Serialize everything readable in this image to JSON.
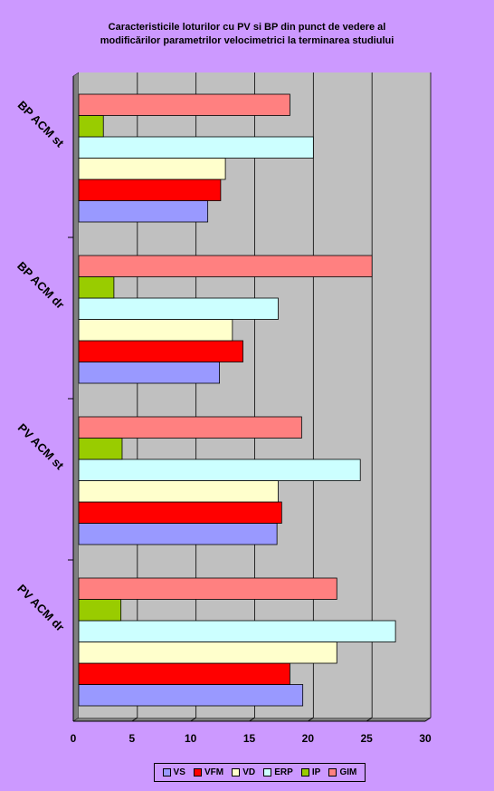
{
  "chart_data": {
    "type": "bar",
    "orientation": "horizontal",
    "title_lines": [
      "Caracteristicile loturilor cu PV si BP din punct de vedere al",
      "modificărilor  parametrilor velocimetrici la terminarea studiului"
    ],
    "categories": [
      "PV ACM dr",
      "PV ACM st",
      "BP ACM dr",
      "BP ACM st"
    ],
    "series": [
      {
        "name": "VS",
        "color": "#9999ff",
        "values": [
          19.1,
          16.9,
          12.0,
          11.0
        ]
      },
      {
        "name": "VFM",
        "color": "#ff0000",
        "values": [
          18.0,
          17.3,
          14.0,
          12.1
        ]
      },
      {
        "name": "VD",
        "color": "#ffffcc",
        "values": [
          22.0,
          17.0,
          13.1,
          12.5
        ]
      },
      {
        "name": "ERP",
        "color": "#ccffff",
        "values": [
          27.0,
          24.0,
          17.0,
          20.0
        ]
      },
      {
        "name": "IP",
        "color": "#99cc00",
        "values": [
          3.6,
          3.7,
          3.0,
          2.1
        ]
      },
      {
        "name": "GIM",
        "color": "#ff8080",
        "values": [
          22.0,
          19.0,
          25.0,
          18.0
        ]
      }
    ],
    "xlim": [
      0,
      30
    ],
    "xticks": [
      0,
      5,
      10,
      15,
      20,
      25,
      30
    ],
    "grid": true,
    "plot_background": "#c0c0c0",
    "legend_position": "bottom"
  }
}
